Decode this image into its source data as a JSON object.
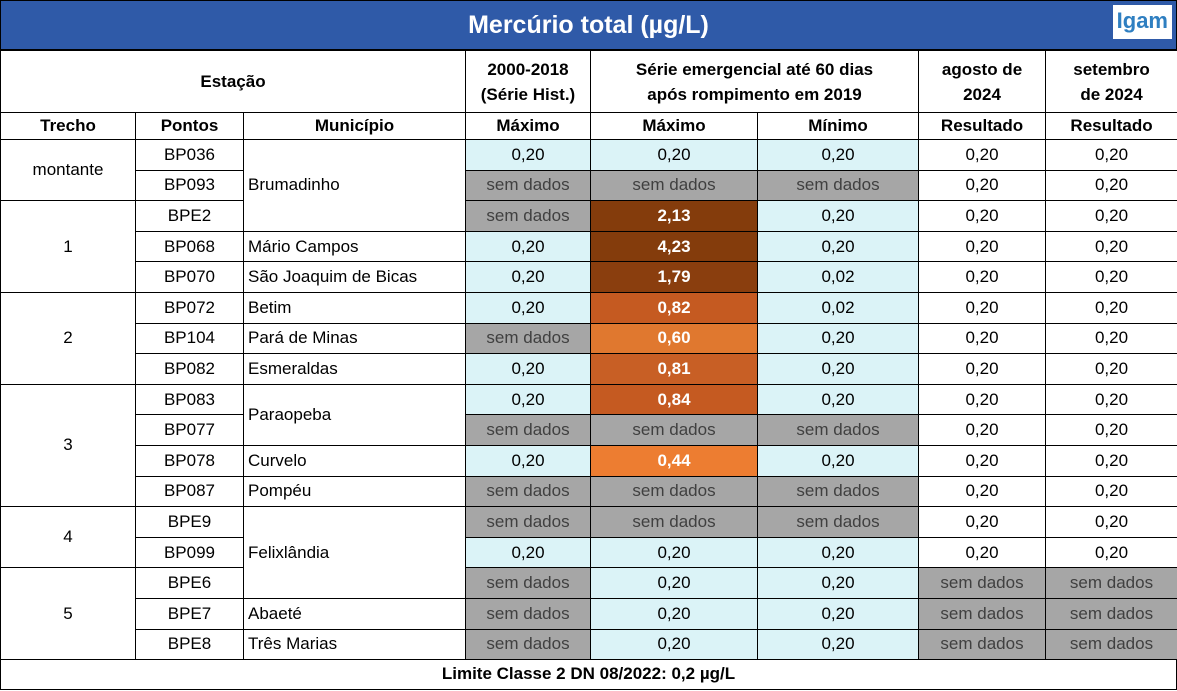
{
  "title": "Mercúrio total (µg/L)",
  "logo": "Igam",
  "header": {
    "estacao": "Estação",
    "hist": [
      "2000-2018",
      "(Série Hist.)"
    ],
    "emerg": [
      "Série emergencial até 60 dias",
      "após rompimento em 2019"
    ],
    "ago": [
      "agosto de",
      "2024"
    ],
    "set": [
      "setembro",
      "de 2024"
    ]
  },
  "subheader": [
    "Trecho",
    "Pontos",
    "Município",
    "Máximo",
    "Máximo",
    "Mínimo",
    "Resultado",
    "Resultado"
  ],
  "rows": [
    {
      "trecho": "montante",
      "ponto": "BP036",
      "municipio": "Brumadinho",
      "values": [
        "0,20",
        "0,20",
        "0,20",
        "0,20",
        "0,20"
      ]
    },
    {
      "ponto": "BP093",
      "values": [
        "sem dados",
        "sem dados",
        "sem dados",
        "0,20",
        "0,20"
      ]
    },
    {
      "trecho": "1",
      "ponto": "BPE2",
      "values": [
        "sem dados",
        "2,13",
        "0,20",
        "0,20",
        "0,20"
      ],
      "highlight": "#843c0c"
    },
    {
      "ponto": "BP068",
      "municipio": "Mário Campos",
      "values": [
        "0,20",
        "4,23",
        "0,20",
        "0,20",
        "0,20"
      ],
      "highlight": "#843c0c"
    },
    {
      "ponto": "BP070",
      "municipio": "São Joaquim de Bicas",
      "values": [
        "0,20",
        "1,79",
        "0,02",
        "0,20",
        "0,20"
      ],
      "highlight": "#8a3e0e"
    },
    {
      "trecho": "2",
      "ponto": "BP072",
      "municipio": "Betim",
      "values": [
        "0,20",
        "0,82",
        "0,02",
        "0,20",
        "0,20"
      ],
      "highlight": "#c55a21"
    },
    {
      "ponto": "BP104",
      "municipio": "Pará de Minas",
      "values": [
        "sem dados",
        "0,60",
        "0,20",
        "0,20",
        "0,20"
      ],
      "highlight": "#e0782f"
    },
    {
      "ponto": "BP082",
      "municipio": "Esmeraldas",
      "values": [
        "0,20",
        "0,81",
        "0,20",
        "0,20",
        "0,20"
      ],
      "highlight": "#c85f25"
    },
    {
      "trecho": "3",
      "ponto": "BP083",
      "municipio": "Paraopeba",
      "values": [
        "0,20",
        "0,84",
        "0,20",
        "0,20",
        "0,20"
      ],
      "highlight": "#c55a21"
    },
    {
      "ponto": "BP077",
      "values": [
        "sem dados",
        "sem dados",
        "sem dados",
        "0,20",
        "0,20"
      ]
    },
    {
      "ponto": "BP078",
      "municipio": "Curvelo",
      "values": [
        "0,20",
        "0,44",
        "0,20",
        "0,20",
        "0,20"
      ],
      "highlight": "#ed7d31"
    },
    {
      "ponto": "BP087",
      "municipio": "Pompéu",
      "values": [
        "sem dados",
        "sem dados",
        "sem dados",
        "0,20",
        "0,20"
      ]
    },
    {
      "trecho": "4",
      "ponto": "BPE9",
      "municipio": "Felixlândia",
      "values": [
        "sem dados",
        "sem dados",
        "sem dados",
        "0,20",
        "0,20"
      ]
    },
    {
      "ponto": "BP099",
      "values": [
        "0,20",
        "0,20",
        "0,20",
        "0,20",
        "0,20"
      ]
    },
    {
      "trecho": "5",
      "ponto": "BPE6",
      "values": [
        "sem dados",
        "0,20",
        "0,20",
        "sem dados",
        "sem dados"
      ]
    },
    {
      "ponto": "BPE7",
      "municipio": "Abaeté",
      "values": [
        "sem dados",
        "0,20",
        "0,20",
        "sem dados",
        "sem dados"
      ]
    },
    {
      "ponto": "BPE8",
      "municipio": "Três Marias",
      "values": [
        "sem dados",
        "0,20",
        "0,20",
        "sem dados",
        "sem dados"
      ]
    }
  ],
  "footer": "Limite Classe 2 DN 08/2022: 0,2 µg/L"
}
